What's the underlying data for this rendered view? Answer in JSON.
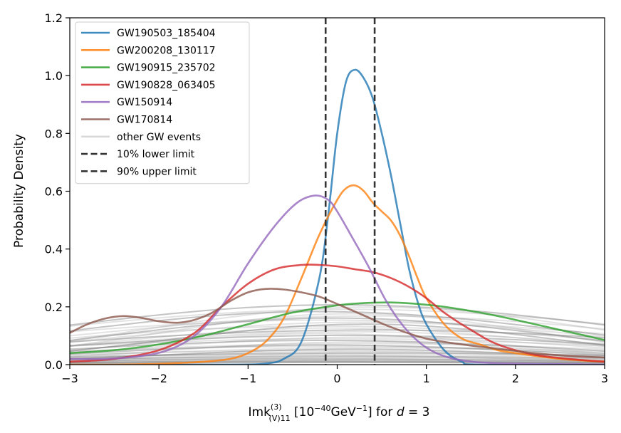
{
  "chart_data": {
    "type": "line",
    "title": "",
    "xlabel": {
      "main": "Imk",
      "sup": "(3)",
      "sub": "(V)11",
      "unit_open": " [10",
      "unit_exp1": "−40",
      "unit_mid": "GeV",
      "unit_exp2": "−1",
      "unit_close": "] for ",
      "var": "d",
      "eq": " = 3"
    },
    "ylabel": "Probability Density",
    "xlim": [
      -3,
      3
    ],
    "ylim": [
      0,
      1.2
    ],
    "xticks": [
      -3,
      -2,
      -1,
      0,
      1,
      2,
      3
    ],
    "xtick_labels": [
      "−3",
      "−2",
      "−1",
      "0",
      "1",
      "2",
      "3"
    ],
    "yticks": [
      0,
      0.2,
      0.4,
      0.6,
      0.8,
      1.0,
      1.2
    ],
    "ytick_labels": [
      "0.0",
      "0.2",
      "0.4",
      "0.6",
      "0.8",
      "1.0",
      "1.2"
    ],
    "grid": false,
    "legend_position": "top-left",
    "series": [
      {
        "name": "GW190503_185404",
        "color": "#1f77b4",
        "x": [
          -3,
          -1.2,
          -0.8,
          -0.6,
          -0.4,
          -0.2,
          -0.1,
          0,
          0.1,
          0.2,
          0.3,
          0.4,
          0.5,
          0.6,
          0.7,
          0.8,
          0.9,
          1.0,
          1.2,
          1.4,
          1.6,
          3
        ],
        "y": [
          0,
          0,
          0.004,
          0.02,
          0.08,
          0.3,
          0.52,
          0.8,
          0.98,
          1.02,
          0.99,
          0.92,
          0.8,
          0.66,
          0.5,
          0.34,
          0.22,
          0.14,
          0.05,
          0.01,
          0,
          0
        ]
      },
      {
        "name": "GW200208_130117",
        "color": "#ff7f0e",
        "x": [
          -3,
          -2.5,
          -2,
          -1.5,
          -1.2,
          -1,
          -0.8,
          -0.6,
          -0.4,
          -0.2,
          0,
          0.1,
          0.2,
          0.3,
          0.4,
          0.5,
          0.6,
          0.7,
          0.8,
          0.9,
          1.0,
          1.2,
          1.4,
          1.6,
          1.8,
          2.0,
          2.5,
          3
        ],
        "y": [
          0,
          0,
          0.003,
          0.01,
          0.02,
          0.04,
          0.08,
          0.16,
          0.3,
          0.45,
          0.57,
          0.61,
          0.62,
          0.6,
          0.56,
          0.53,
          0.5,
          0.45,
          0.38,
          0.3,
          0.23,
          0.14,
          0.09,
          0.07,
          0.05,
          0.04,
          0.02,
          0.01
        ]
      },
      {
        "name": "GW190915_235702",
        "color": "#2ca02c",
        "x": [
          -3,
          -2.5,
          -2,
          -1.5,
          -1,
          -0.5,
          0,
          0.3,
          0.6,
          0.9,
          1.2,
          1.6,
          2,
          2.5,
          3
        ],
        "y": [
          0.04,
          0.05,
          0.07,
          0.1,
          0.14,
          0.18,
          0.205,
          0.213,
          0.215,
          0.21,
          0.2,
          0.18,
          0.155,
          0.12,
          0.085
        ]
      },
      {
        "name": "GW190828_063405",
        "color": "#d62728",
        "x": [
          -3,
          -2.5,
          -2,
          -1.6,
          -1.3,
          -1,
          -0.7,
          -0.4,
          -0.2,
          0,
          0.2,
          0.4,
          0.6,
          0.8,
          1.0,
          1.2,
          1.5,
          1.8,
          2.2,
          2.6,
          3
        ],
        "y": [
          0.01,
          0.02,
          0.05,
          0.11,
          0.2,
          0.28,
          0.33,
          0.345,
          0.345,
          0.34,
          0.33,
          0.32,
          0.3,
          0.27,
          0.23,
          0.18,
          0.12,
          0.07,
          0.035,
          0.02,
          0.01
        ]
      },
      {
        "name": "GW150914",
        "color": "#9467bd",
        "x": [
          -3,
          -2.6,
          -2.2,
          -1.9,
          -1.6,
          -1.3,
          -1.0,
          -0.7,
          -0.45,
          -0.25,
          -0.1,
          0,
          0.15,
          0.35,
          0.55,
          0.75,
          0.95,
          1.15,
          1.4,
          1.8,
          3
        ],
        "y": [
          0.02,
          0.02,
          0.03,
          0.05,
          0.1,
          0.2,
          0.35,
          0.48,
          0.56,
          0.585,
          0.57,
          0.53,
          0.45,
          0.34,
          0.22,
          0.13,
          0.07,
          0.035,
          0.015,
          0.005,
          0
        ]
      },
      {
        "name": "GW170814",
        "color": "#8c564b",
        "x": [
          -3,
          -2.8,
          -2.6,
          -2.4,
          -2.2,
          -2.0,
          -1.8,
          -1.6,
          -1.4,
          -1.2,
          -1.0,
          -0.8,
          -0.6,
          -0.4,
          -0.2,
          0,
          0.3,
          0.6,
          1.0,
          1.4,
          1.8,
          2.2,
          2.6,
          3
        ],
        "y": [
          0.11,
          0.14,
          0.16,
          0.168,
          0.162,
          0.15,
          0.145,
          0.155,
          0.18,
          0.22,
          0.25,
          0.262,
          0.26,
          0.25,
          0.235,
          0.21,
          0.17,
          0.13,
          0.09,
          0.07,
          0.055,
          0.04,
          0.03,
          0.025
        ]
      }
    ],
    "other_events": {
      "name": "other GW events",
      "color": "#a0a0a0",
      "count": 40
    },
    "vlines": [
      {
        "name": "10% lower limit",
        "x": -0.13,
        "color": "#333333"
      },
      {
        "name": "90% upper limit",
        "x": 0.42,
        "color": "#333333"
      }
    ]
  }
}
